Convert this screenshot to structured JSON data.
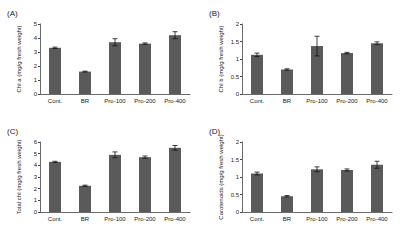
{
  "chart_data": [
    {
      "type": "bar",
      "title": "(A)",
      "y_label": "Chl a (mg/g fresh weight)",
      "categories": [
        "Cont.",
        "BR",
        "Pro-100",
        "Pro-200",
        "Pro-400"
      ],
      "values": [
        3.3,
        1.6,
        3.7,
        3.6,
        4.2
      ],
      "errors": [
        0.05,
        0.03,
        0.25,
        0.05,
        0.25
      ],
      "color": "#5a5a5a",
      "ylim": [
        0,
        5
      ],
      "yticks": [
        0,
        1,
        2,
        3,
        4,
        5
      ],
      "grid": false
    },
    {
      "type": "bar",
      "title": "(B)",
      "y_label": "Chl b (mg/g fresh weight)",
      "categories": [
        "Cont.",
        "BR",
        "Pro-100",
        "Pro-200",
        "Pro-400"
      ],
      "values": [
        1.12,
        0.7,
        1.37,
        1.17,
        1.45
      ],
      "errors": [
        0.05,
        0.02,
        0.28,
        0.02,
        0.04
      ],
      "color": "#5a5a5a",
      "ylim": [
        0,
        2
      ],
      "yticks": [
        0,
        0.5,
        1,
        1.5,
        2
      ],
      "grid": false
    },
    {
      "type": "bar",
      "title": "(C)",
      "y_label": "Total chl (mg/g fresh weight)",
      "categories": [
        "Cont.",
        "BR",
        "Pro-100",
        "Pro-200",
        "Pro-400"
      ],
      "values": [
        4.3,
        2.25,
        4.9,
        4.7,
        5.5
      ],
      "errors": [
        0.05,
        0.05,
        0.25,
        0.1,
        0.2
      ],
      "color": "#5a5a5a",
      "ylim": [
        0,
        6
      ],
      "yticks": [
        0,
        1,
        2,
        3,
        4,
        5,
        6
      ],
      "grid": false
    },
    {
      "type": "bar",
      "title": "(D)",
      "y_label": "Carotenoids (mg/g fresh weight)",
      "categories": [
        "Cont.",
        "BR",
        "Pro-100",
        "Pro-200",
        "Pro-400"
      ],
      "values": [
        1.1,
        0.45,
        1.22,
        1.2,
        1.35
      ],
      "errors": [
        0.04,
        0.02,
        0.07,
        0.03,
        0.1
      ],
      "color": "#5a5a5a",
      "ylim": [
        0,
        2
      ],
      "yticks": [
        0,
        0.5,
        1,
        1.5,
        2
      ],
      "grid": false
    }
  ]
}
